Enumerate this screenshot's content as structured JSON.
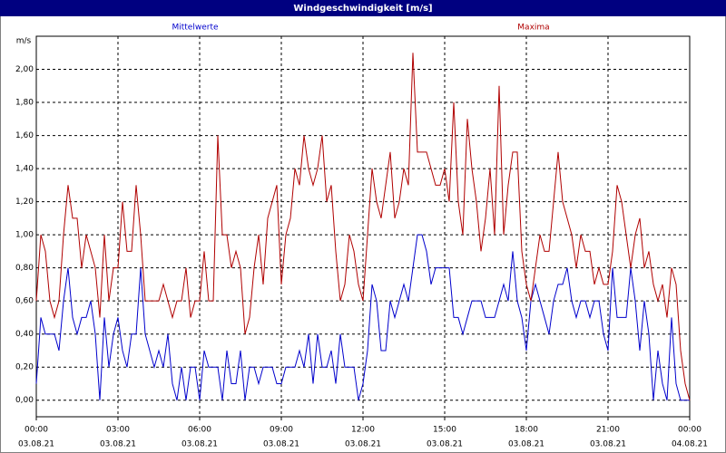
{
  "chart_data": {
    "type": "line",
    "title": "Windgeschwindigkeit [m/s]",
    "y_label": "m/s",
    "x": [
      0,
      10,
      20,
      30,
      40,
      50,
      60,
      70,
      80,
      90,
      100,
      110,
      120,
      130,
      140,
      150,
      160,
      170,
      180,
      190,
      200,
      210,
      220,
      230,
      240,
      250,
      260,
      270,
      280,
      290,
      300,
      310,
      320,
      330,
      340,
      350,
      360,
      370,
      380,
      390,
      400,
      410,
      420,
      430,
      440,
      450,
      460,
      470,
      480,
      490,
      500,
      510,
      520,
      530,
      540,
      550,
      560,
      570,
      580,
      590,
      600,
      610,
      620,
      630,
      640,
      650,
      660,
      670,
      680,
      690,
      700,
      710,
      720,
      730,
      740,
      750,
      760,
      770,
      780,
      790,
      800,
      810,
      820,
      830,
      840,
      850,
      860,
      870,
      880,
      890,
      900,
      910,
      920,
      930,
      940,
      950,
      960,
      970,
      980,
      990,
      1000,
      1010,
      1020,
      1030,
      1040,
      1050,
      1060,
      1070,
      1080,
      1090,
      1100,
      1110,
      1120,
      1130,
      1140,
      1150,
      1160,
      1170,
      1180,
      1190,
      1200,
      1210,
      1220,
      1230,
      1240,
      1250,
      1260,
      1270,
      1280,
      1290,
      1300,
      1310,
      1320,
      1330,
      1340,
      1350,
      1360,
      1370,
      1380,
      1390,
      1400,
      1410,
      1420,
      1430,
      1440
    ],
    "series": [
      {
        "name": "Mittelwerte",
        "color": "#0000cc",
        "values": [
          0.1,
          0.5,
          0.4,
          0.4,
          0.4,
          0.3,
          0.6,
          0.8,
          0.5,
          0.4,
          0.5,
          0.5,
          0.6,
          0.4,
          0.0,
          0.5,
          0.2,
          0.4,
          0.5,
          0.3,
          0.2,
          0.4,
          0.4,
          0.8,
          0.4,
          0.3,
          0.2,
          0.3,
          0.2,
          0.4,
          0.1,
          0.0,
          0.2,
          0.0,
          0.2,
          0.2,
          0.0,
          0.3,
          0.2,
          0.2,
          0.2,
          0.0,
          0.3,
          0.1,
          0.1,
          0.3,
          0.0,
          0.2,
          0.2,
          0.1,
          0.2,
          0.2,
          0.2,
          0.1,
          0.1,
          0.2,
          0.2,
          0.2,
          0.3,
          0.2,
          0.4,
          0.1,
          0.4,
          0.2,
          0.2,
          0.3,
          0.1,
          0.4,
          0.2,
          0.2,
          0.2,
          0.0,
          0.1,
          0.3,
          0.7,
          0.6,
          0.3,
          0.3,
          0.6,
          0.5,
          0.6,
          0.7,
          0.6,
          0.8,
          1.0,
          1.0,
          0.9,
          0.7,
          0.8,
          0.8,
          0.8,
          0.8,
          0.5,
          0.5,
          0.4,
          0.5,
          0.6,
          0.6,
          0.6,
          0.5,
          0.5,
          0.5,
          0.6,
          0.7,
          0.6,
          0.9,
          0.6,
          0.5,
          0.3,
          0.6,
          0.7,
          0.6,
          0.5,
          0.4,
          0.6,
          0.7,
          0.7,
          0.8,
          0.6,
          0.5,
          0.6,
          0.6,
          0.5,
          0.6,
          0.6,
          0.4,
          0.3,
          0.8,
          0.5,
          0.5,
          0.5,
          0.8,
          0.6,
          0.3,
          0.6,
          0.4,
          0.0,
          0.3,
          0.1,
          0.0,
          0.5,
          0.1,
          0.0,
          0.0,
          0.0
        ]
      },
      {
        "name": "Maxima",
        "color": "#b00000",
        "values": [
          0.6,
          1.0,
          0.9,
          0.6,
          0.5,
          0.6,
          1.0,
          1.3,
          1.1,
          1.1,
          0.8,
          1.0,
          0.9,
          0.8,
          0.5,
          1.0,
          0.6,
          0.8,
          0.8,
          1.2,
          0.9,
          0.9,
          1.3,
          1.0,
          0.6,
          0.6,
          0.6,
          0.6,
          0.7,
          0.6,
          0.5,
          0.6,
          0.6,
          0.8,
          0.5,
          0.6,
          0.6,
          0.9,
          0.6,
          0.6,
          1.6,
          1.0,
          1.0,
          0.8,
          0.9,
          0.8,
          0.4,
          0.5,
          0.8,
          1.0,
          0.7,
          1.1,
          1.2,
          1.3,
          0.7,
          1.0,
          1.1,
          1.4,
          1.3,
          1.6,
          1.4,
          1.3,
          1.4,
          1.6,
          1.2,
          1.3,
          0.9,
          0.6,
          0.7,
          1.0,
          0.9,
          0.7,
          0.6,
          1.0,
          1.4,
          1.2,
          1.1,
          1.3,
          1.5,
          1.1,
          1.2,
          1.4,
          1.3,
          2.1,
          1.5,
          1.5,
          1.5,
          1.4,
          1.3,
          1.3,
          1.4,
          1.2,
          1.8,
          1.2,
          1.0,
          1.7,
          1.4,
          1.2,
          0.9,
          1.1,
          1.4,
          1.0,
          1.9,
          1.0,
          1.3,
          1.5,
          1.5,
          0.9,
          0.7,
          0.6,
          0.8,
          1.0,
          0.9,
          0.9,
          1.2,
          1.5,
          1.2,
          1.1,
          1.0,
          0.8,
          1.0,
          0.9,
          0.9,
          0.7,
          0.8,
          0.7,
          0.7,
          0.9,
          1.3,
          1.2,
          1.0,
          0.8,
          1.0,
          1.1,
          0.8,
          0.9,
          0.7,
          0.6,
          0.7,
          0.5,
          0.8,
          0.7,
          0.3,
          0.1,
          0.0
        ]
      }
    ],
    "xlim": [
      0,
      1440
    ],
    "xticks": [
      {
        "value": 0,
        "label": "00:00"
      },
      {
        "value": 180,
        "label": "03:00"
      },
      {
        "value": 360,
        "label": "06:00"
      },
      {
        "value": 540,
        "label": "09:00"
      },
      {
        "value": 720,
        "label": "12:00"
      },
      {
        "value": 900,
        "label": "15:00"
      },
      {
        "value": 1080,
        "label": "18:00"
      },
      {
        "value": 1260,
        "label": "21:00"
      },
      {
        "value": 1440,
        "label": "00:00"
      }
    ],
    "xtick_dates": [
      "03.08.21",
      "03.08.21",
      "03.08.21",
      "03.08.21",
      "03.08.21",
      "03.08.21",
      "03.08.21",
      "03.08.21",
      "04.08.21"
    ],
    "ylim": [
      -0.1,
      2.2
    ],
    "yticks": [
      {
        "value": 0,
        "label": "0,00"
      },
      {
        "value": 0.2,
        "label": "0,20"
      },
      {
        "value": 0.4,
        "label": "0,40"
      },
      {
        "value": 0.6,
        "label": "0,60"
      },
      {
        "value": 0.8,
        "label": "0,80"
      },
      {
        "value": 1.0,
        "label": "1,00"
      },
      {
        "value": 1.2,
        "label": "1,20"
      },
      {
        "value": 1.4,
        "label": "1,40"
      },
      {
        "value": 1.6,
        "label": "1,60"
      },
      {
        "value": 1.8,
        "label": "1,80"
      },
      {
        "value": 2.0,
        "label": "2,00"
      }
    ],
    "grid": true
  }
}
